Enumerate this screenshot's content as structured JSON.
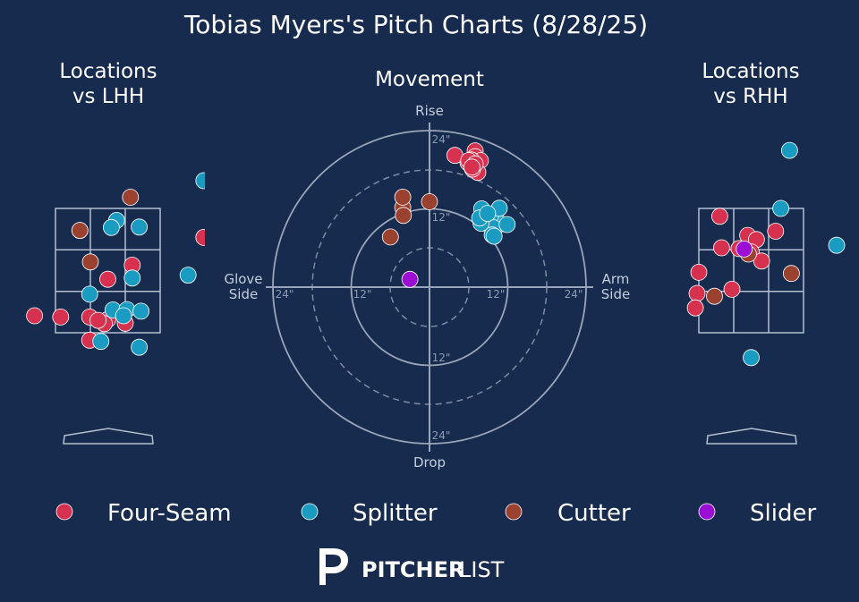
{
  "title": "Tobias Myers's Pitch Charts (8/28/25)",
  "panels": {
    "lhh_title": [
      "Locations",
      "vs LHH"
    ],
    "movement_title": "Movement",
    "rhh_title": [
      "Locations",
      "vs RHH"
    ]
  },
  "movement_axes": {
    "top": "Rise",
    "bottom": "Drop",
    "left": [
      "Glove",
      "Side"
    ],
    "right": [
      "Arm",
      "Side"
    ],
    "ring_labels": [
      "24\"",
      "12\"",
      "12\"",
      "24\"",
      "12\"",
      "24\"",
      "24\"",
      "12\""
    ]
  },
  "legend": [
    {
      "label": "Four-Seam",
      "color": "#d6324f"
    },
    {
      "label": "Splitter",
      "color": "#1a9bc2"
    },
    {
      "label": "Cutter",
      "color": "#9a4130"
    },
    {
      "label": "Slider",
      "color": "#9b0fd4"
    }
  ],
  "brand": {
    "strong": "PITCHER",
    "light": "LIST"
  },
  "chart_data": [
    {
      "type": "scatter",
      "title": "Locations vs LHH",
      "xlabel": "",
      "ylabel": "",
      "x_unit": "strike-zone thirds (0..3 across zone)",
      "y_unit": "strike-zone thirds (0 = top, 3 = bottom)",
      "series": [
        {
          "name": "Four-Seam",
          "points": [
            [
              0.7,
              0.53
            ],
            [
              2.2,
              1.37
            ],
            [
              1.5,
              1.71
            ],
            [
              -0.6,
              2.59
            ],
            [
              0.15,
              2.62
            ],
            [
              0.98,
              2.62
            ],
            [
              1.5,
              2.68
            ],
            [
              1.4,
              2.78
            ],
            [
              1.22,
              2.7
            ],
            [
              0.98,
              3.18
            ],
            [
              4.25,
              0.7
            ],
            [
              2.0,
              2.77
            ]
          ]
        },
        {
          "name": "Splitter",
          "points": [
            [
              1.75,
              0.29
            ],
            [
              1.6,
              0.46
            ],
            [
              2.4,
              0.45
            ],
            [
              0.98,
              2.07
            ],
            [
              2.2,
              1.68
            ],
            [
              1.65,
              2.45
            ],
            [
              2.05,
              2.44
            ],
            [
              1.95,
              2.59
            ],
            [
              2.45,
              2.48
            ],
            [
              1.3,
              3.21
            ],
            [
              2.4,
              3.35
            ],
            [
              3.8,
              1.61
            ],
            [
              4.25,
              -0.67
            ]
          ]
        },
        {
          "name": "Cutter",
          "points": [
            [
              2.15,
              -0.27
            ],
            [
              0.7,
              0.53
            ],
            [
              1.0,
              1.29
            ]
          ]
        }
      ]
    },
    {
      "type": "scatter",
      "title": "Movement",
      "xlabel": "Glove Side / Arm Side",
      "ylabel": "Drop / Rise",
      "x_unit": "inches (+ = arm side)",
      "y_unit": "inches (+ = rise)",
      "xlim": [
        -24,
        24
      ],
      "ylim": [
        -24,
        24
      ],
      "series": [
        {
          "name": "Four-Seam",
          "points": [
            [
              7.0,
              20.9
            ],
            [
              7.0,
              20.0
            ],
            [
              7.8,
              19.4
            ],
            [
              7.4,
              17.6
            ],
            [
              6.6,
              18.1
            ],
            [
              6.1,
              18.9
            ],
            [
              5.9,
              19.1
            ],
            [
              6.4,
              19.5
            ],
            [
              3.9,
              20.2
            ],
            [
              6.0,
              19.4
            ],
            [
              7.0,
              18.9
            ],
            [
              6.5,
              18.4
            ]
          ]
        },
        {
          "name": "Splitter",
          "points": [
            [
              9.9,
              9.9
            ],
            [
              10.9,
              9.7
            ],
            [
              8.3,
              10.9
            ],
            [
              9.4,
              11.0
            ],
            [
              9.8,
              9.1
            ],
            [
              10.7,
              12.1
            ],
            [
              8.0,
              12.0
            ],
            [
              7.9,
              9.8
            ],
            [
              9.6,
              8.0
            ],
            [
              11.9,
              9.6
            ],
            [
              9.9,
              7.8
            ],
            [
              7.7,
              10.6
            ],
            [
              8.9,
              11.3
            ]
          ]
        },
        {
          "name": "Cutter",
          "points": [
            [
              0.0,
              13.1
            ],
            [
              -4.1,
              12.2
            ],
            [
              -4.1,
              13.8
            ],
            [
              -4.0,
              11.0
            ],
            [
              -6.0,
              7.7
            ]
          ]
        },
        {
          "name": "Slider",
          "points": [
            [
              -3.0,
              1.2
            ]
          ]
        }
      ]
    },
    {
      "type": "scatter",
      "title": "Locations vs RHH",
      "xlabel": "",
      "ylabel": "",
      "x_unit": "strike-zone thirds (0..3 across zone)",
      "y_unit": "strike-zone thirds (0 = top, 3 = bottom)",
      "series": [
        {
          "name": "Four-Seam",
          "points": [
            [
              0.6,
              0.19
            ],
            [
              1.4,
              0.65
            ],
            [
              1.65,
              0.75
            ],
            [
              2.2,
              0.55
            ],
            [
              0.65,
              0.95
            ],
            [
              1.15,
              0.97
            ],
            [
              1.5,
              1.05
            ],
            [
              1.8,
              1.27
            ],
            [
              0.0,
              1.54
            ],
            [
              -0.05,
              2.05
            ],
            [
              0.95,
              1.95
            ],
            [
              -0.1,
              2.4
            ]
          ]
        },
        {
          "name": "Splitter",
          "points": [
            [
              2.6,
              -1.4
            ],
            [
              2.35,
              0.0
            ],
            [
              3.95,
              0.89
            ],
            [
              1.5,
              3.6
            ]
          ]
        },
        {
          "name": "Cutter",
          "points": [
            [
              1.42,
              1.1
            ],
            [
              2.65,
              1.57
            ],
            [
              0.45,
              2.12
            ]
          ]
        },
        {
          "name": "Slider",
          "points": [
            [
              1.3,
              0.98
            ]
          ]
        }
      ]
    }
  ]
}
